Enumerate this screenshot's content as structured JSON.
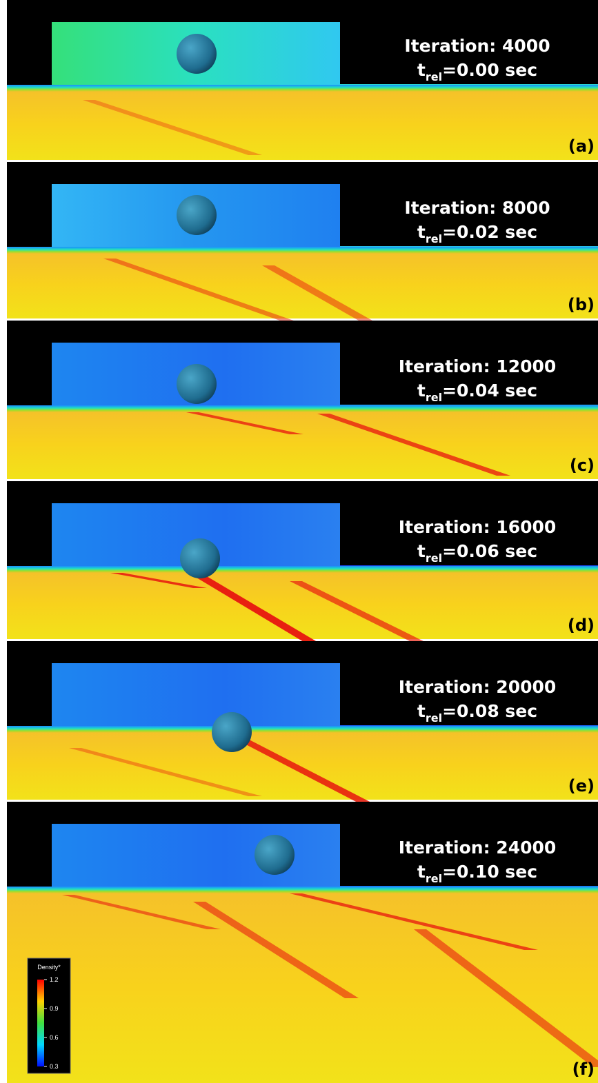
{
  "panels": [
    {
      "iteration": "Iteration: 4000",
      "time_symbol": "t",
      "time_subscript": "rel",
      "time_value": "=0.00 sec",
      "label": "(a)"
    },
    {
      "iteration": "Iteration: 8000",
      "time_symbol": "t",
      "time_subscript": "rel",
      "time_value": "=0.02 sec",
      "label": "(b)"
    },
    {
      "iteration": "Iteration: 12000",
      "time_symbol": "t",
      "time_subscript": "rel",
      "time_value": "=0.04 sec",
      "label": "(c)"
    },
    {
      "iteration": "Iteration: 16000",
      "time_symbol": "t",
      "time_subscript": "rel",
      "time_value": "=0.06 sec",
      "label": "(d)"
    },
    {
      "iteration": "Iteration: 20000",
      "time_symbol": "t",
      "time_subscript": "rel",
      "time_value": "=0.08 sec",
      "label": "(e)"
    },
    {
      "iteration": "Iteration: 24000",
      "time_symbol": "t",
      "time_subscript": "rel",
      "time_value": "=0.10 sec",
      "label": "(f)"
    }
  ],
  "colorbar": {
    "title": "Density*",
    "ticks": [
      1.2,
      0.9,
      0.6,
      0.3
    ]
  }
}
